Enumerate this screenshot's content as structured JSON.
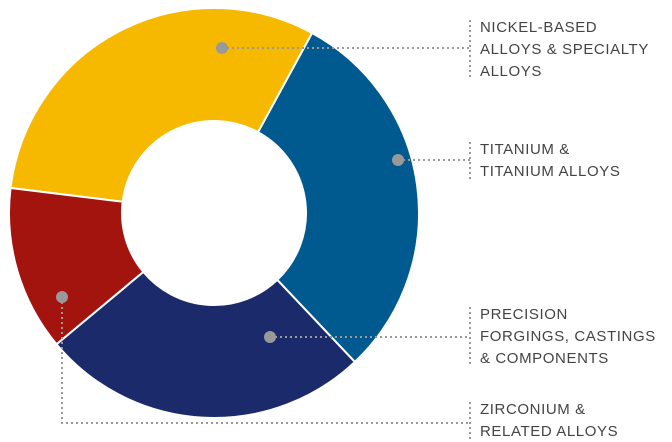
{
  "chart_data": {
    "type": "donut",
    "categories": [
      [
        "NICKEL-BASED",
        "ALLOYS & SPECIALTY",
        "ALLOYS"
      ],
      [
        "TITANIUM &",
        "TITANIUM ALLOYS"
      ],
      [
        "PRECISION",
        "FORGINGS, CASTINGS",
        "& COMPONENTS"
      ],
      [
        "ZIRCONIUM &",
        "RELATED ALLOYS"
      ]
    ],
    "values": [
      31,
      30,
      26,
      13
    ],
    "colors": [
      "#f7b800",
      "#005a8f",
      "#1b2a6b",
      "#a3140e"
    ]
  }
}
